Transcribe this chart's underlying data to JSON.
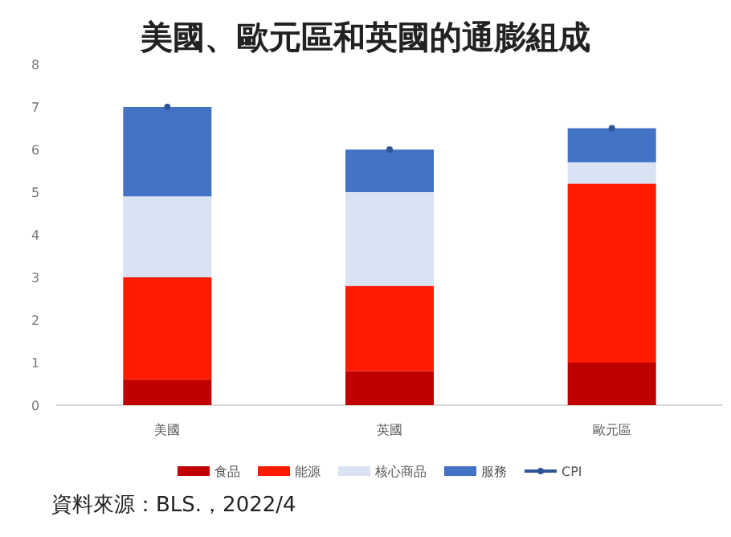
{
  "chart_data": {
    "type": "bar",
    "title": "美國、歐元區和英國的通膨組成",
    "categories": [
      "美國",
      "英國",
      "歐元區"
    ],
    "stacked": true,
    "ylim": [
      0,
      8
    ],
    "yticks": [
      0,
      1,
      2,
      3,
      4,
      5,
      6,
      7,
      8
    ],
    "grid": false,
    "legend": "bottom",
    "annotations": [
      "資料來源：BLS.，2022/4"
    ],
    "series": [
      {
        "name": "食品",
        "color": "#c00000",
        "values": [
          0.6,
          0.8,
          1.0
        ]
      },
      {
        "name": "能源",
        "color": "#ff1a00",
        "values": [
          2.4,
          2.0,
          4.2
        ]
      },
      {
        "name": "核心商品",
        "color": "#dae3f3",
        "values": [
          1.9,
          2.2,
          0.5
        ]
      },
      {
        "name": "服務",
        "color": "#4472c4",
        "values": [
          2.1,
          1.0,
          0.8
        ]
      },
      {
        "name": "CPI",
        "type": "scatter",
        "marker": "circle",
        "color": "#2f5597",
        "values": [
          7.0,
          6.0,
          6.5
        ]
      }
    ]
  }
}
